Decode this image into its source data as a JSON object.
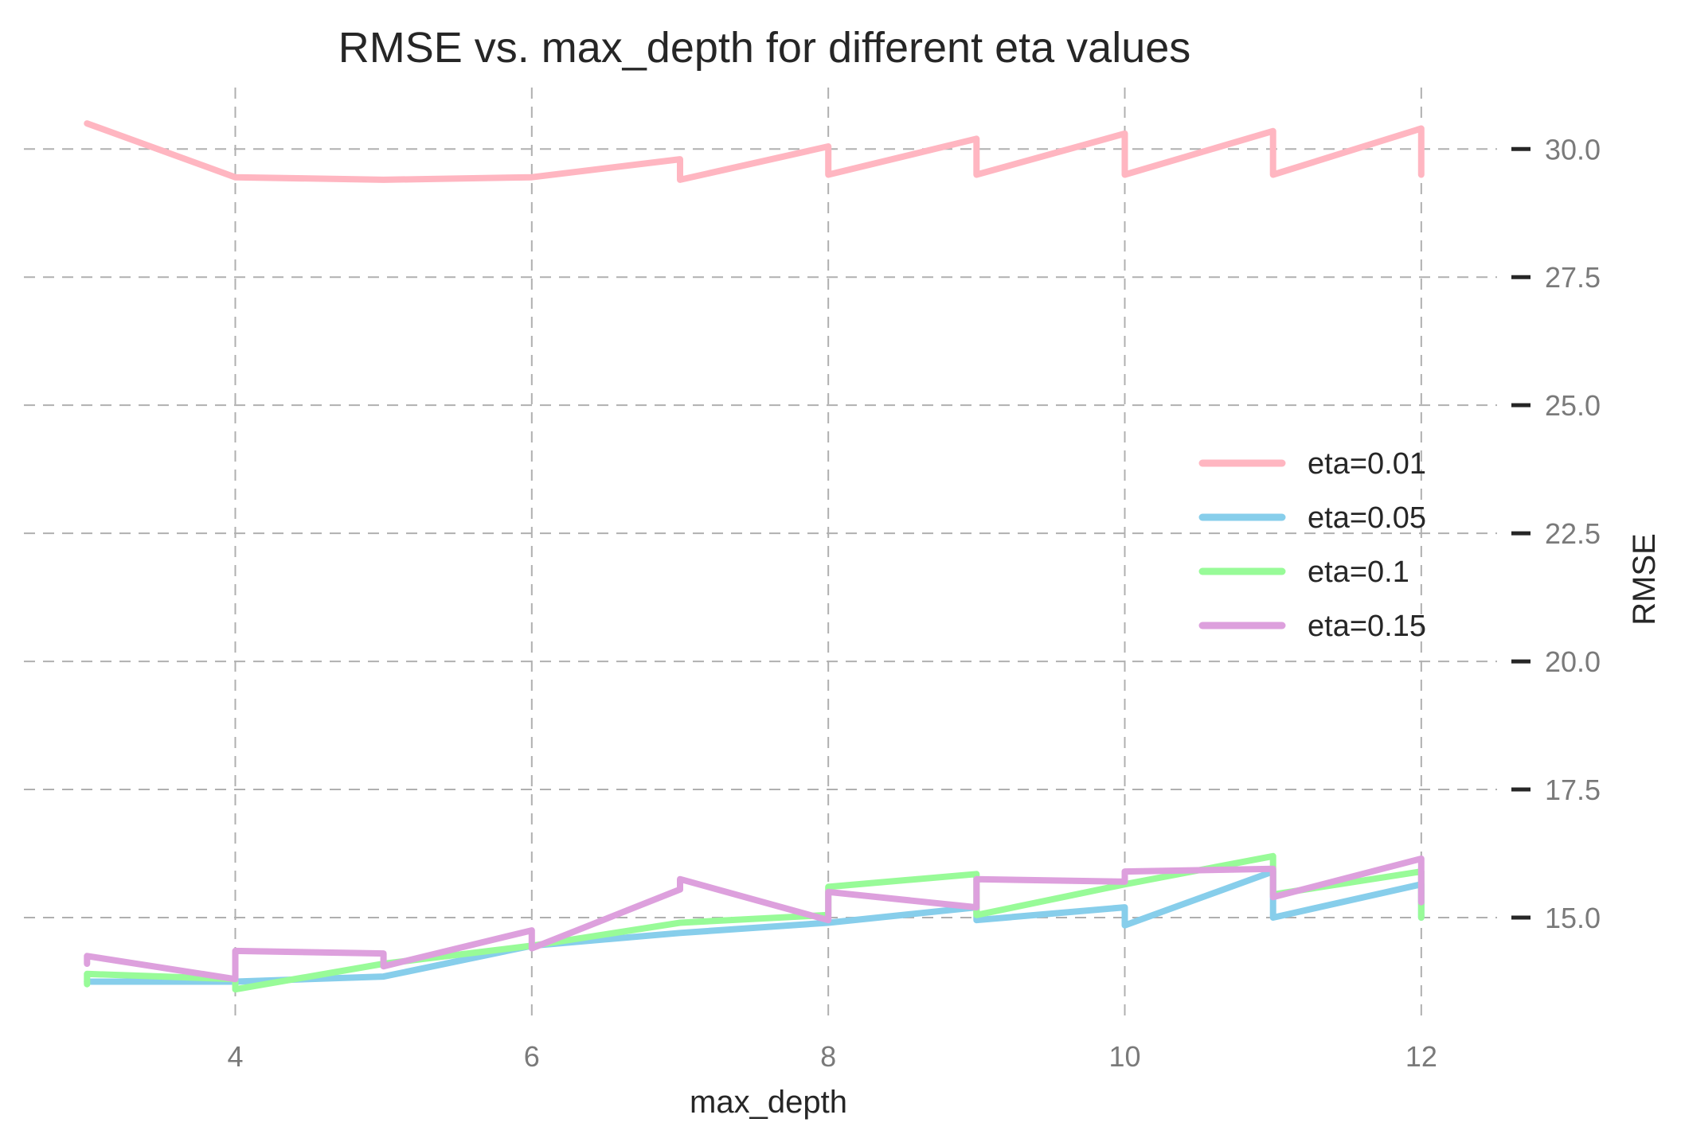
{
  "chart_data": {
    "type": "line",
    "title": "RMSE vs. max_depth for different eta values",
    "xlabel": "max_depth",
    "ylabel": "RMSE",
    "xlim": [
      2.95,
      12.35
    ],
    "ylim": [
      12.95,
      31.2
    ],
    "xticks": [
      4,
      6,
      8,
      10,
      12
    ],
    "xtick_labels": [
      "4",
      "6",
      "8",
      "10",
      "12"
    ],
    "yticks": [
      15.0,
      17.5,
      20.0,
      22.5,
      25.0,
      27.5,
      30.0
    ],
    "ytick_labels": [
      "15.0",
      "17.5",
      "20.0",
      "22.5",
      "25.0",
      "27.5",
      "30.0"
    ],
    "y_axis_side": "right",
    "grid": true,
    "legend_position": "center-right",
    "series": [
      {
        "name": "eta=0.01",
        "color": "#ffb6c1",
        "x": [
          3,
          4,
          5,
          6,
          7,
          7,
          8,
          8,
          9,
          9,
          10,
          10,
          11,
          11,
          12,
          12
        ],
        "y": [
          30.5,
          29.45,
          29.4,
          29.45,
          29.8,
          29.4,
          30.05,
          29.5,
          30.2,
          29.5,
          30.3,
          29.5,
          30.35,
          29.5,
          30.4,
          29.5
        ]
      },
      {
        "name": "eta=0.05",
        "color": "#87ceeb",
        "x": [
          3,
          4,
          5,
          6,
          7,
          8,
          9,
          9,
          10,
          10,
          11,
          11,
          12,
          12
        ],
        "y": [
          13.75,
          13.75,
          13.85,
          14.45,
          14.7,
          14.9,
          15.2,
          14.95,
          15.2,
          14.85,
          15.9,
          15.0,
          15.65,
          15.0
        ]
      },
      {
        "name": "eta=0.1",
        "color": "#98fb98",
        "x": [
          3,
          3,
          4,
          4,
          5,
          6,
          7,
          8,
          8,
          9,
          9,
          10,
          11,
          11,
          12,
          12
        ],
        "y": [
          13.7,
          13.9,
          13.8,
          13.6,
          14.1,
          14.45,
          14.9,
          15.05,
          15.6,
          15.85,
          15.05,
          15.65,
          16.2,
          15.45,
          15.9,
          15.0
        ]
      },
      {
        "name": "eta=0.15",
        "color": "#dda0dd",
        "x": [
          3,
          3,
          4,
          4,
          5,
          5,
          6,
          6,
          7,
          7,
          8,
          8,
          9,
          9,
          10,
          10,
          11,
          11,
          12,
          12
        ],
        "y": [
          14.1,
          14.25,
          13.8,
          14.35,
          14.3,
          14.05,
          14.75,
          14.4,
          15.55,
          15.75,
          14.95,
          15.5,
          15.2,
          15.75,
          15.7,
          15.9,
          15.95,
          15.4,
          16.15,
          15.3
        ]
      }
    ]
  }
}
